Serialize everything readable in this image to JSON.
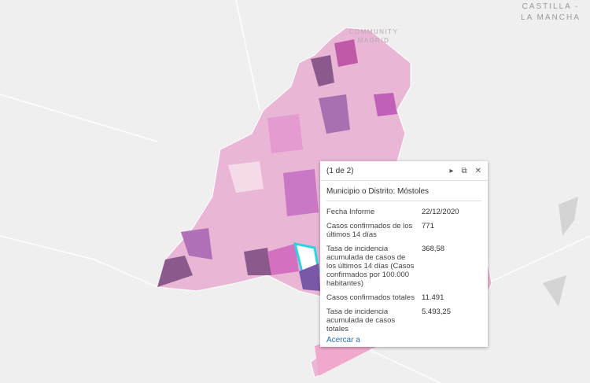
{
  "map": {
    "labels": [
      "CASTILLA -",
      "LA MANCHA",
      "COMMUNITY",
      "MADRID"
    ]
  },
  "popup": {
    "counter": "(1 de 2)",
    "title": "Municipio o Distrito: Móstoles",
    "rows": [
      [
        "Fecha Informe",
        "22/12/2020"
      ],
      [
        "Casos confirmados de los últimos 14 días",
        "771"
      ],
      [
        "Tasa de incidencia acumulada de casos de los últimos 14 días (Casos confirmados por 100.000 habitantes)",
        "368,58"
      ],
      [
        "Casos confirmados totales",
        "11.491"
      ],
      [
        "Tasa de incidencia acumulada de casos totales",
        "5.493,25"
      ]
    ],
    "action": "Acercar a"
  }
}
